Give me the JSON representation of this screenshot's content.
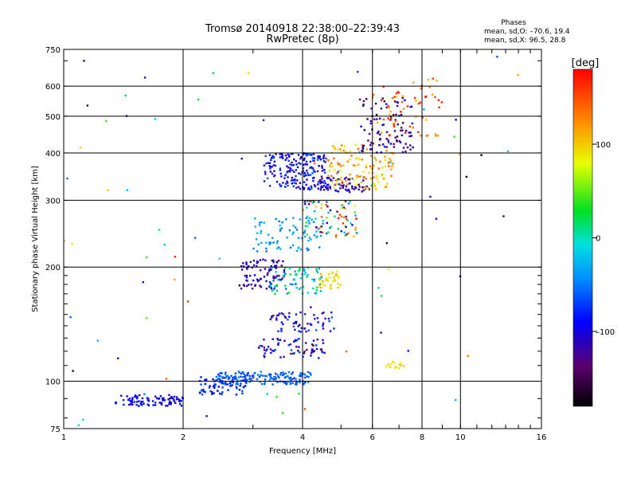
{
  "title": "Tromsø 20140918 22:38:00–22:39:43",
  "subtitle": "RwPretec (8p)",
  "stats": {
    "heading": "Phases",
    "line_o": "mean, sd,O: –70.6, 19.4",
    "line_x": "mean, sd,X:  96.5, 28.8"
  },
  "colorbar": {
    "unit": "[deg]",
    "min": -180,
    "max": 180,
    "ticks": [
      100,
      0,
      -100
    ],
    "tick_labels": [
      "100",
      "0",
      "–100"
    ]
  },
  "chart_data": {
    "type": "scatter",
    "xlabel": "Frequency [MHz]",
    "ylabel": "Stationary phase Virtual Height [km]",
    "xscale": "log",
    "yscale": "log",
    "xlim": [
      1,
      16
    ],
    "ylim": [
      75,
      750
    ],
    "xticks": [
      1,
      2,
      4,
      6,
      8,
      10,
      16
    ],
    "xtick_labels": [
      "1",
      "2",
      "4",
      "6",
      "8",
      "10",
      "16"
    ],
    "yticks": [
      75,
      100,
      200,
      300,
      400,
      500,
      600,
      750
    ],
    "ytick_labels": [
      "75",
      "100",
      "200",
      "300",
      "400",
      "500",
      "600",
      "750"
    ],
    "grid": true,
    "color_variable": "phase [deg]",
    "clusters": [
      {
        "x": [
          1.35,
          2.0
        ],
        "y": [
          86,
          92
        ],
        "phase": [
          -110,
          -80
        ],
        "n": 90
      },
      {
        "x": [
          2.2,
          2.9
        ],
        "y": [
          92,
          103
        ],
        "phase": [
          -100,
          -60
        ],
        "n": 70
      },
      {
        "x": [
          2.4,
          4.2
        ],
        "y": [
          98,
          106
        ],
        "phase": [
          -75,
          -45
        ],
        "n": 170
      },
      {
        "x": [
          3.1,
          4.6
        ],
        "y": [
          115,
          130
        ],
        "phase": [
          -150,
          -60
        ],
        "n": 70
      },
      {
        "x": [
          3.3,
          4.8
        ],
        "y": [
          135,
          152
        ],
        "phase": [
          -140,
          -60
        ],
        "n": 60
      },
      {
        "x": [
          2.8,
          3.6
        ],
        "y": [
          175,
          210
        ],
        "phase": [
          -130,
          -90
        ],
        "n": 90
      },
      {
        "x": [
          3.3,
          4.5
        ],
        "y": [
          170,
          200
        ],
        "phase": [
          -60,
          40
        ],
        "n": 70
      },
      {
        "x": [
          4.4,
          5.0
        ],
        "y": [
          175,
          195
        ],
        "phase": [
          80,
          110
        ],
        "n": 35
      },
      {
        "x": [
          3.0,
          4.6
        ],
        "y": [
          220,
          270
        ],
        "phase": [
          -60,
          -20
        ],
        "n": 80
      },
      {
        "x": [
          4.0,
          5.5
        ],
        "y": [
          240,
          300
        ],
        "phase": [
          -160,
          170
        ],
        "n": 80
      },
      {
        "x": [
          3.2,
          4.6
        ],
        "y": [
          320,
          400
        ],
        "phase": [
          -120,
          -60
        ],
        "n": 200
      },
      {
        "x": [
          4.4,
          5.9
        ],
        "y": [
          315,
          345
        ],
        "phase": [
          -150,
          -80
        ],
        "n": 70
      },
      {
        "x": [
          4.6,
          6.8
        ],
        "y": [
          320,
          420
        ],
        "phase": [
          70,
          140
        ],
        "n": 130
      },
      {
        "x": [
          5.6,
          7.6
        ],
        "y": [
          400,
          560
        ],
        "phase": [
          -160,
          -90
        ],
        "n": 100
      },
      {
        "x": [
          6.0,
          9.0
        ],
        "y": [
          440,
          640
        ],
        "phase": [
          100,
          180
        ],
        "n": 60
      },
      {
        "x": [
          6.5,
          7.2
        ],
        "y": [
          108,
          113
        ],
        "phase": [
          80,
          100
        ],
        "n": 15
      },
      {
        "x": [
          1.0,
          14.0
        ],
        "y": [
          76,
          740
        ],
        "phase": [
          -180,
          180
        ],
        "n": 80
      }
    ]
  }
}
